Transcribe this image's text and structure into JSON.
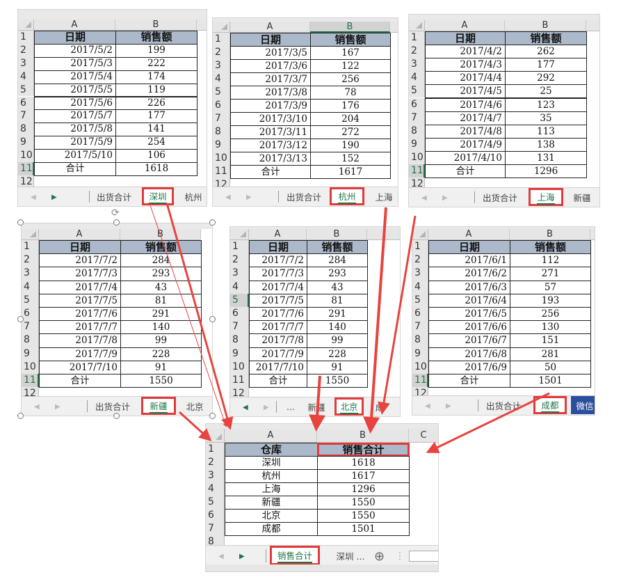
{
  "accent_color": "#217346",
  "highlight_color": "#e03a3a",
  "header_fill": "#acb9ca",
  "panels": [
    {
      "name": "shenzhen",
      "columns": [
        "A",
        "B"
      ],
      "header": [
        "日期",
        "销售额"
      ],
      "rows": [
        [
          "2017/5/2",
          "199"
        ],
        [
          "2017/5/3",
          "222"
        ],
        [
          "2017/5/4",
          "174"
        ],
        [
          "2017/5/5",
          "119"
        ],
        [
          "2017/5/6",
          "226"
        ],
        [
          "2017/5/7",
          "177"
        ],
        [
          "2017/5/8",
          "141"
        ],
        [
          "2017/5/9",
          "254"
        ],
        [
          "2017/5/10",
          "106"
        ]
      ],
      "total": [
        "合计",
        "1618"
      ],
      "row_numbers": [
        "1",
        "2",
        "3",
        "4",
        "5",
        "6",
        "7",
        "8",
        "9",
        "10",
        "11",
        "12"
      ],
      "tabs": [
        "出货合计",
        "深圳",
        "杭州"
      ],
      "active_tab": "深圳"
    },
    {
      "name": "hangzhou",
      "columns": [
        "A",
        "B"
      ],
      "header": [
        "日期",
        "销售额"
      ],
      "rows": [
        [
          "2017/3/5",
          "167"
        ],
        [
          "2017/3/6",
          "122"
        ],
        [
          "2017/3/7",
          "256"
        ],
        [
          "2017/3/8",
          "78"
        ],
        [
          "2017/3/9",
          "176"
        ],
        [
          "2017/3/10",
          "204"
        ],
        [
          "2017/3/11",
          "272"
        ],
        [
          "2017/3/12",
          "190"
        ],
        [
          "2017/3/13",
          "152"
        ]
      ],
      "total": [
        "合计",
        "1617"
      ],
      "row_numbers": [
        "1",
        "2",
        "3",
        "4",
        "5",
        "6",
        "7",
        "8",
        "9",
        "10",
        "11",
        "12"
      ],
      "tabs": [
        "出货合计",
        "杭州",
        "上海"
      ],
      "active_tab": "杭州"
    },
    {
      "name": "shanghai",
      "columns": [
        "A",
        "B"
      ],
      "header": [
        "日期",
        "销售额"
      ],
      "rows": [
        [
          "2017/4/2",
          "262"
        ],
        [
          "2017/4/3",
          "177"
        ],
        [
          "2017/4/4",
          "292"
        ],
        [
          "2017/4/5",
          "25"
        ],
        [
          "2017/4/6",
          "123"
        ],
        [
          "2017/4/7",
          "35"
        ],
        [
          "2017/4/8",
          "113"
        ],
        [
          "2017/4/9",
          "138"
        ],
        [
          "2017/4/10",
          "131"
        ]
      ],
      "total": [
        "合计",
        "1296"
      ],
      "row_numbers": [
        "1",
        "2",
        "3",
        "4",
        "5",
        "6",
        "7",
        "8",
        "9",
        "10",
        "11",
        "12"
      ],
      "tabs": [
        "出货合计",
        "上海",
        "新疆"
      ],
      "active_tab": "上海"
    },
    {
      "name": "xinjiang",
      "columns": [
        "A",
        "B"
      ],
      "header": [
        "日期",
        "销售额"
      ],
      "rows": [
        [
          "2017/7/2",
          "284"
        ],
        [
          "2017/7/3",
          "293"
        ],
        [
          "2017/7/4",
          "43"
        ],
        [
          "2017/7/5",
          "81"
        ],
        [
          "2017/7/6",
          "291"
        ],
        [
          "2017/7/7",
          "140"
        ],
        [
          "2017/7/8",
          "99"
        ],
        [
          "2017/7/9",
          "228"
        ],
        [
          "2017/7/10",
          "91"
        ]
      ],
      "total": [
        "合计",
        "1550"
      ],
      "row_numbers": [
        "1",
        "2",
        "3",
        "4",
        "5",
        "6",
        "7",
        "8",
        "9",
        "10",
        "11",
        "12"
      ],
      "tabs": [
        "出货合计",
        "新疆",
        "北京"
      ],
      "active_tab": "新疆"
    },
    {
      "name": "beijing",
      "columns": [
        "A",
        "B"
      ],
      "header": [
        "日期",
        "销售额"
      ],
      "rows": [
        [
          "2017/7/2",
          "284"
        ],
        [
          "2017/7/3",
          "293"
        ],
        [
          "2017/7/4",
          "43"
        ],
        [
          "2017/7/5",
          "81"
        ],
        [
          "2017/7/6",
          "291"
        ],
        [
          "2017/7/7",
          "140"
        ],
        [
          "2017/7/8",
          "99"
        ],
        [
          "2017/7/9",
          "228"
        ],
        [
          "2017/7/10",
          "91"
        ]
      ],
      "total": [
        "合计",
        "1550"
      ],
      "row_numbers": [
        "1",
        "2",
        "3",
        "4",
        "5",
        "6",
        "7",
        "8",
        "9",
        "10",
        "11",
        "12"
      ],
      "tabs": [
        "...",
        "新疆",
        "北京",
        "成"
      ],
      "active_tab": "北京"
    },
    {
      "name": "chengdu",
      "columns": [
        "A",
        "B"
      ],
      "header": [
        "日期",
        "销售额"
      ],
      "rows": [
        [
          "2017/6/1",
          "112"
        ],
        [
          "2017/6/2",
          "271"
        ],
        [
          "2017/6/3",
          "57"
        ],
        [
          "2017/6/4",
          "193"
        ],
        [
          "2017/6/5",
          "256"
        ],
        [
          "2017/6/6",
          "130"
        ],
        [
          "2017/6/7",
          "151"
        ],
        [
          "2017/6/8",
          "281"
        ],
        [
          "2017/6/9",
          "50"
        ]
      ],
      "total": [
        "合计",
        "1501"
      ],
      "row_numbers": [
        "1",
        "2",
        "3",
        "4",
        "5",
        "6",
        "7",
        "8",
        "9",
        "10",
        "11",
        "12"
      ],
      "tabs": [
        "出货合计",
        "成都",
        "微信"
      ],
      "active_tab": "成都"
    },
    {
      "name": "summary",
      "columns": [
        "A",
        "B",
        "C"
      ],
      "header": [
        "仓库",
        "销售合计"
      ],
      "rows": [
        [
          "深圳",
          "1618"
        ],
        [
          "杭州",
          "1617"
        ],
        [
          "上海",
          "1296"
        ],
        [
          "新疆",
          "1550"
        ],
        [
          "北京",
          "1550"
        ],
        [
          "成都",
          "1501"
        ]
      ],
      "row_numbers": [
        "1",
        "2",
        "3",
        "4",
        "5",
        "6",
        "7",
        "8"
      ],
      "tabs": [
        "销售合计",
        "深圳 ..."
      ],
      "active_tab": "销售合计"
    }
  ]
}
